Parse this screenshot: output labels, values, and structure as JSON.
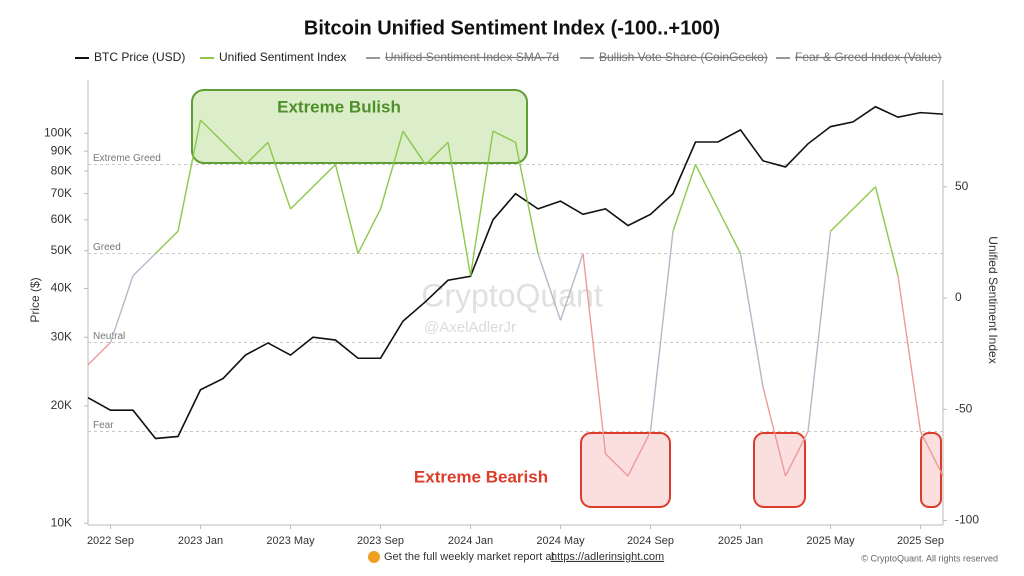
{
  "chart_data": {
    "type": "line",
    "title": "Bitcoin Unified Sentiment Index (-100..+100)",
    "x": [
      "2022-08",
      "2022-09",
      "2022-10",
      "2022-11",
      "2022-12",
      "2023-01",
      "2023-02",
      "2023-03",
      "2023-04",
      "2023-05",
      "2023-06",
      "2023-07",
      "2023-08",
      "2023-09",
      "2023-10",
      "2023-11",
      "2023-12",
      "2024-01",
      "2024-02",
      "2024-03",
      "2024-04",
      "2024-05",
      "2024-06",
      "2024-07",
      "2024-08",
      "2024-09",
      "2024-10",
      "2024-11",
      "2024-12",
      "2025-01",
      "2025-02",
      "2025-03",
      "2025-04",
      "2025-05",
      "2025-06",
      "2025-07",
      "2025-08",
      "2025-09",
      "2025-10"
    ],
    "xlim": [
      "2022-08",
      "2025-10"
    ],
    "xticks": [
      {
        "value": "2022-09",
        "label": "2022 Sep"
      },
      {
        "value": "2023-01",
        "label": "2023 Jan"
      },
      {
        "value": "2023-05",
        "label": "2023 May"
      },
      {
        "value": "2023-09",
        "label": "2023 Sep"
      },
      {
        "value": "2024-01",
        "label": "2024 Jan"
      },
      {
        "value": "2024-05",
        "label": "2024 May"
      },
      {
        "value": "2024-09",
        "label": "2024 Sep"
      },
      {
        "value": "2025-01",
        "label": "2025 Jan"
      },
      {
        "value": "2025-05",
        "label": "2025 May"
      },
      {
        "value": "2025-09",
        "label": "2025 Sep"
      }
    ],
    "series": [
      {
        "name": "BTC Price (USD)",
        "color": "#111111",
        "axis": "y",
        "values": [
          21000,
          19500,
          19500,
          16500,
          16700,
          22000,
          23500,
          27000,
          29000,
          27000,
          30000,
          29500,
          26500,
          26500,
          33000,
          37000,
          42000,
          43000,
          60000,
          70000,
          64000,
          67000,
          62000,
          64000,
          58000,
          62000,
          70000,
          95000,
          95000,
          102000,
          85000,
          82000,
          94000,
          104000,
          107000,
          117000,
          110000,
          113000,
          112000
        ]
      },
      {
        "name": "Unified Sentiment Index",
        "color": "#8cc84b",
        "axis": "y2",
        "values": [
          -30,
          -20,
          10,
          20,
          30,
          80,
          70,
          60,
          70,
          40,
          50,
          60,
          20,
          40,
          75,
          60,
          70,
          10,
          75,
          70,
          20,
          -10,
          20,
          -70,
          -80,
          -60,
          30,
          60,
          40,
          20,
          -40,
          -80,
          -60,
          30,
          40,
          50,
          10,
          -60,
          -80
        ]
      }
    ],
    "zone_colors": {
      "greed": "#8cc84b",
      "neutral": "#b4b8c8",
      "fear": "#ee9a9a"
    },
    "hidden_series": [
      "Unified Sentiment Index SMA-7d",
      "Bullish Vote Share (CoinGecko)",
      "Fear & Greed Index (Value)"
    ],
    "ylabel": "Price ($)",
    "y2label": "Unified Sentiment Index",
    "log_y": true,
    "ylim": [
      9900,
      137000
    ],
    "yticks": [
      {
        "value": 10000,
        "label": "10K"
      },
      {
        "value": 20000,
        "label": "20K"
      },
      {
        "value": 30000,
        "label": "30K"
      },
      {
        "value": 40000,
        "label": "40K"
      },
      {
        "value": 50000,
        "label": "50K"
      },
      {
        "value": 60000,
        "label": "60K"
      },
      {
        "value": 70000,
        "label": "70K"
      },
      {
        "value": 80000,
        "label": "80K"
      },
      {
        "value": 90000,
        "label": "90K"
      },
      {
        "value": 100000,
        "label": "100K"
      }
    ],
    "y2lim": [
      -102,
      98
    ],
    "y2ticks": [
      -100,
      -50,
      0,
      50
    ],
    "thresholds": [
      {
        "value": 60,
        "label": "Extreme Greed"
      },
      {
        "value": 20,
        "label": "Greed"
      },
      {
        "value": -20,
        "label": "Neutral"
      },
      {
        "value": -60,
        "label": "Fear"
      }
    ],
    "annotations": {
      "bullish": "Extreme Bulish",
      "bearish": "Extreme Bearish"
    },
    "watermark": [
      "CryptoQuant",
      "@AxelAdlerJr"
    ],
    "footer": {
      "text": "Get the full weekly market report at",
      "link": "https://adlerinsight.com",
      "copyright": "© CryptoQuant. All rights reserved"
    }
  }
}
